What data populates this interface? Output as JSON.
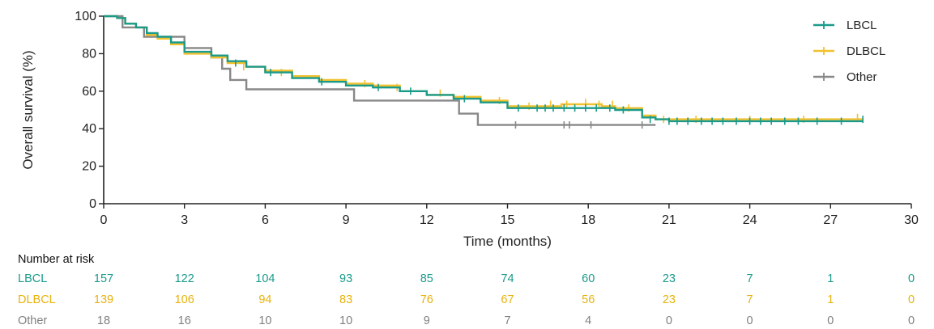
{
  "chart_data": {
    "type": "line",
    "subtype": "kaplan-meier",
    "title": "",
    "xlabel": "Time (months)",
    "ylabel": "Overall survival (%)",
    "xlim": [
      0,
      30
    ],
    "ylim": [
      0,
      100
    ],
    "xticks": [
      0,
      3,
      6,
      9,
      12,
      15,
      18,
      21,
      24,
      27,
      30
    ],
    "yticks": [
      0,
      20,
      40,
      60,
      80,
      100
    ],
    "grid": false,
    "legend_position": "top-right",
    "series": [
      {
        "name": "Other",
        "color": "#888888",
        "steps": [
          [
            0,
            100
          ],
          [
            0.7,
            100
          ],
          [
            0.7,
            94
          ],
          [
            1.5,
            94
          ],
          [
            1.5,
            89
          ],
          [
            3.0,
            89
          ],
          [
            3.0,
            83
          ],
          [
            4.0,
            83
          ],
          [
            4.0,
            78
          ],
          [
            4.4,
            78
          ],
          [
            4.4,
            72
          ],
          [
            4.7,
            72
          ],
          [
            4.7,
            66
          ],
          [
            5.3,
            66
          ],
          [
            5.3,
            61
          ],
          [
            9.3,
            61
          ],
          [
            9.3,
            55
          ],
          [
            13.2,
            55
          ],
          [
            13.2,
            48
          ],
          [
            13.9,
            48
          ],
          [
            13.9,
            42
          ],
          [
            20.5,
            42
          ]
        ],
        "censors": [
          [
            15.3,
            42
          ],
          [
            17.1,
            42
          ],
          [
            17.3,
            42
          ],
          [
            18.1,
            42
          ],
          [
            20.0,
            42
          ]
        ]
      },
      {
        "name": "DLBCL",
        "color": "#f2c12e",
        "steps": [
          [
            0,
            100
          ],
          [
            0.5,
            99
          ],
          [
            0.8,
            96
          ],
          [
            1.2,
            94
          ],
          [
            1.6,
            90
          ],
          [
            2.0,
            88
          ],
          [
            2.5,
            85
          ],
          [
            3.0,
            80
          ],
          [
            4.0,
            78
          ],
          [
            4.6,
            75
          ],
          [
            5.3,
            73
          ],
          [
            6.0,
            71
          ],
          [
            7.0,
            68
          ],
          [
            8.0,
            66
          ],
          [
            9.0,
            64
          ],
          [
            10.0,
            63
          ],
          [
            11.0,
            60
          ],
          [
            12.0,
            58
          ],
          [
            13.0,
            57
          ],
          [
            14.0,
            55
          ],
          [
            15.0,
            52
          ],
          [
            16.5,
            52
          ],
          [
            17.0,
            53
          ],
          [
            18.5,
            52
          ],
          [
            19.0,
            51
          ],
          [
            20.0,
            47
          ],
          [
            20.5,
            45
          ],
          [
            21.0,
            45
          ],
          [
            28.2,
            45
          ]
        ],
        "censors": [
          [
            5.2,
            73
          ],
          [
            6.6,
            70
          ],
          [
            9.7,
            64
          ],
          [
            10.9,
            62
          ],
          [
            12.5,
            59
          ],
          [
            14.7,
            55
          ],
          [
            15.8,
            52
          ],
          [
            16.6,
            53
          ],
          [
            17.2,
            53
          ],
          [
            17.9,
            54
          ],
          [
            18.4,
            53
          ],
          [
            18.9,
            53
          ],
          [
            19.5,
            51
          ],
          [
            20.8,
            45
          ],
          [
            22.0,
            45
          ],
          [
            24.0,
            45
          ],
          [
            26.0,
            45
          ],
          [
            28.0,
            46
          ]
        ]
      },
      {
        "name": "LBCL",
        "color": "#1a9a8a",
        "steps": [
          [
            0,
            100
          ],
          [
            0.5,
            99
          ],
          [
            0.8,
            96
          ],
          [
            1.2,
            94
          ],
          [
            1.6,
            91
          ],
          [
            2.0,
            89
          ],
          [
            2.5,
            86
          ],
          [
            3.0,
            81
          ],
          [
            4.0,
            79
          ],
          [
            4.6,
            76
          ],
          [
            5.3,
            73
          ],
          [
            6.0,
            70
          ],
          [
            7.0,
            67
          ],
          [
            8.0,
            65
          ],
          [
            9.0,
            63
          ],
          [
            10.0,
            62
          ],
          [
            11.0,
            60
          ],
          [
            12.0,
            58
          ],
          [
            13.0,
            56
          ],
          [
            14.0,
            54
          ],
          [
            15.0,
            51
          ],
          [
            16.5,
            51
          ],
          [
            17.0,
            51
          ],
          [
            18.5,
            51
          ],
          [
            19.0,
            50
          ],
          [
            20.0,
            46
          ],
          [
            20.5,
            45
          ],
          [
            21.0,
            44
          ],
          [
            28.2,
            44
          ]
        ],
        "censors": [
          [
            4.9,
            75
          ],
          [
            6.2,
            70
          ],
          [
            8.1,
            65
          ],
          [
            10.2,
            62
          ],
          [
            11.4,
            60
          ],
          [
            13.4,
            56
          ],
          [
            15.4,
            51
          ],
          [
            16.1,
            51
          ],
          [
            16.4,
            51
          ],
          [
            16.7,
            51
          ],
          [
            17.1,
            51
          ],
          [
            17.5,
            51
          ],
          [
            17.9,
            51
          ],
          [
            18.3,
            51
          ],
          [
            18.8,
            51
          ],
          [
            19.3,
            50
          ],
          [
            20.3,
            45
          ],
          [
            21.0,
            44
          ],
          [
            21.3,
            44
          ],
          [
            21.7,
            44
          ],
          [
            22.2,
            44
          ],
          [
            22.6,
            44
          ],
          [
            23.0,
            44
          ],
          [
            23.5,
            44
          ],
          [
            24.0,
            44
          ],
          [
            24.4,
            44
          ],
          [
            24.8,
            44
          ],
          [
            25.3,
            44
          ],
          [
            25.8,
            44
          ],
          [
            26.5,
            44
          ],
          [
            27.4,
            44
          ],
          [
            28.2,
            45
          ]
        ]
      }
    ],
    "legend": [
      {
        "name": "LBCL",
        "color": "#1a9a8a"
      },
      {
        "name": "DLBCL",
        "color": "#f2c12e"
      },
      {
        "name": "Other",
        "color": "#888888"
      }
    ],
    "number_at_risk": {
      "title": "Number at risk",
      "rows": [
        {
          "label": "LBCL",
          "color": "#1a9a8a",
          "values": [
            157,
            122,
            104,
            93,
            85,
            74,
            60,
            23,
            7,
            1,
            0
          ]
        },
        {
          "label": "DLBCL",
          "color": "#e8b20c",
          "values": [
            139,
            106,
            94,
            83,
            76,
            67,
            56,
            23,
            7,
            1,
            0
          ]
        },
        {
          "label": "Other",
          "color": "#808080",
          "values": [
            18,
            16,
            10,
            10,
            9,
            7,
            4,
            0,
            0,
            0,
            0
          ]
        }
      ]
    }
  }
}
